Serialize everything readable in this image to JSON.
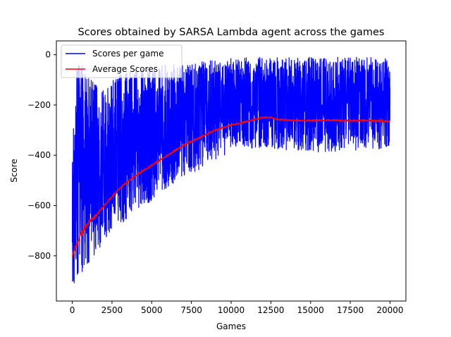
{
  "chart_data": {
    "type": "line",
    "title": "Scores obtained by SARSA Lambda agent across the games",
    "xlabel": "Games",
    "ylabel": "Score",
    "xlim": [
      -1000,
      21000
    ],
    "ylim": [
      -980,
      55
    ],
    "xticks": [
      0,
      2500,
      5000,
      7500,
      10000,
      12500,
      15000,
      17500,
      20000
    ],
    "yticks": [
      0,
      -200,
      -400,
      -600,
      -800
    ],
    "xtick_labels": [
      "0",
      "2500",
      "5000",
      "7500",
      "10000",
      "12500",
      "15000",
      "17500",
      "20000"
    ],
    "ytick_labels": [
      "0",
      "−200",
      "−400",
      "−600",
      "−800"
    ],
    "legend_position": "upper-left",
    "grid": false,
    "colors": {
      "scores": "#0000ff",
      "average": "#ff0000"
    },
    "series": [
      {
        "name": "Scores per game",
        "kind": "noisy",
        "x": [
          0,
          250,
          500,
          1000,
          1500,
          2000,
          2500,
          3000,
          4000,
          5000,
          6000,
          7000,
          8000,
          9000,
          10000,
          11000,
          12000,
          13000,
          14000,
          15000,
          16000,
          17000,
          18000,
          19000,
          20000
        ],
        "upper": [
          -380,
          -40,
          -30,
          -80,
          -120,
          -140,
          -100,
          -80,
          -60,
          -50,
          -40,
          -40,
          -30,
          -20,
          -10,
          -10,
          -10,
          -10,
          -10,
          -10,
          -10,
          -10,
          -10,
          -10,
          -10
        ],
        "lower": [
          -940,
          -900,
          -880,
          -830,
          -790,
          -740,
          -710,
          -680,
          -620,
          -580,
          -530,
          -490,
          -460,
          -420,
          -390,
          -380,
          -370,
          -380,
          -380,
          -390,
          -390,
          -380,
          -380,
          -380,
          -370
        ]
      },
      {
        "name": "Average Scores",
        "kind": "smooth",
        "x": [
          0,
          250,
          500,
          1000,
          1500,
          2000,
          2500,
          3000,
          4000,
          5000,
          6000,
          7000,
          8000,
          9000,
          10000,
          11000,
          12000,
          12500,
          13000,
          14000,
          15000,
          16000,
          17000,
          18000,
          19000,
          20000
        ],
        "values": [
          -800,
          -760,
          -720,
          -670,
          -640,
          -600,
          -565,
          -530,
          -480,
          -440,
          -400,
          -360,
          -330,
          -300,
          -280,
          -265,
          -250,
          -250,
          -258,
          -262,
          -262,
          -260,
          -262,
          -262,
          -262,
          -265
        ]
      }
    ]
  }
}
